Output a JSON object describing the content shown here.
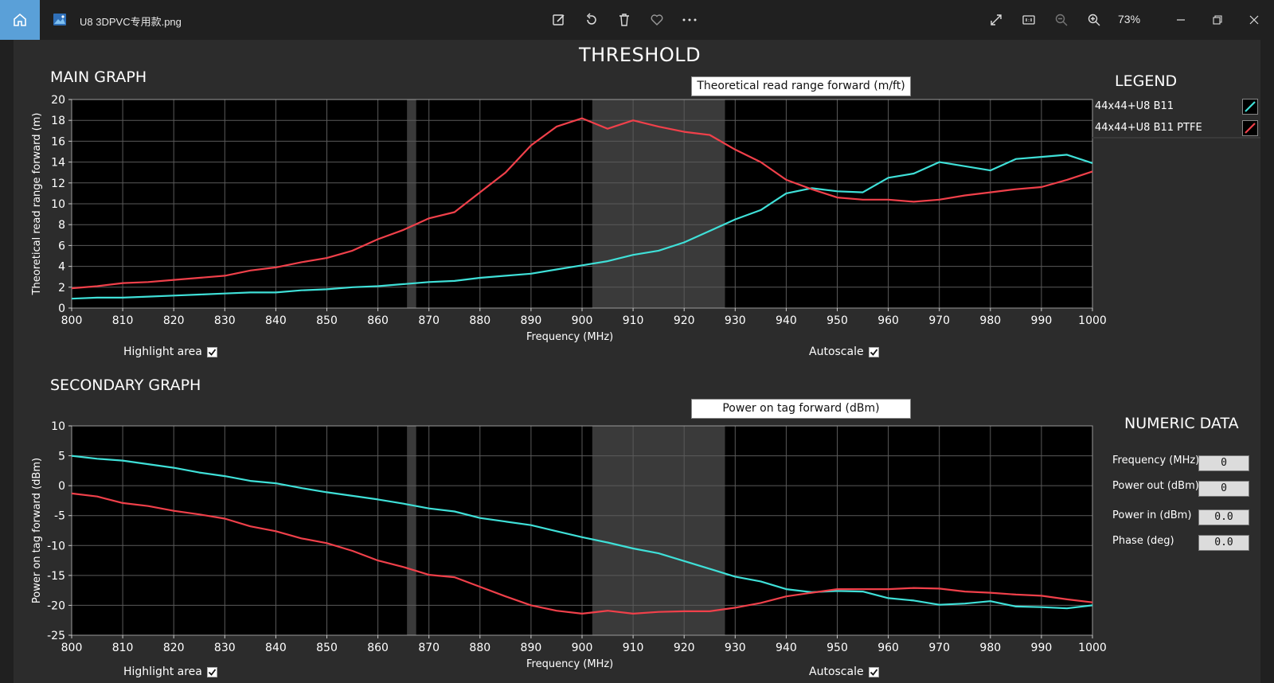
{
  "window": {
    "file_name": "U8 3DPVC专用款.png",
    "zoom": "73%"
  },
  "app": {
    "title": "THRESHOLD",
    "main_graph_label": "MAIN GRAPH",
    "secondary_graph_label": "SECONDARY GRAPH",
    "legend_title": "LEGEND",
    "legend": [
      {
        "name": "44x44+U8 B11",
        "color": "#3fe0d8"
      },
      {
        "name": "44x44+U8 B11 PTFE",
        "color": "#f0404a"
      }
    ],
    "numeric_title": "NUMERIC DATA",
    "numeric": [
      {
        "label": "Frequency (MHz)",
        "value": "0"
      },
      {
        "label": "Power out (dBm)",
        "value": "0"
      },
      {
        "label": "Power in (dBm)",
        "value": "0.0"
      },
      {
        "label": "Phase (deg)",
        "value": "0.0"
      }
    ],
    "highlight_label": "Highlight area",
    "autoscale_label": "Autoscale"
  },
  "chart_data": [
    {
      "type": "line",
      "title": "Theoretical read range forward (m/ft)",
      "xlabel": "Frequency (MHz)",
      "ylabel": "Theoretical read range forward (m)",
      "xlim": [
        800,
        1000
      ],
      "ylim": [
        0,
        20
      ],
      "xticks": [
        800,
        810,
        820,
        830,
        840,
        850,
        860,
        870,
        880,
        890,
        900,
        910,
        920,
        930,
        940,
        950,
        960,
        970,
        980,
        990,
        1000
      ],
      "yticks": [
        0,
        2,
        4,
        6,
        8,
        10,
        12,
        14,
        16,
        18,
        20
      ],
      "highlight_bands": [
        [
          865.7,
          867.5
        ],
        [
          902,
          928
        ]
      ],
      "grid": true,
      "x": [
        800,
        805,
        810,
        815,
        820,
        825,
        830,
        835,
        840,
        845,
        850,
        855,
        860,
        865,
        870,
        875,
        880,
        885,
        890,
        895,
        900,
        905,
        910,
        915,
        920,
        925,
        930,
        935,
        940,
        945,
        950,
        955,
        960,
        965,
        970,
        975,
        980,
        985,
        990,
        995,
        1000
      ],
      "series": [
        {
          "name": "44x44+U8 B11",
          "color": "#3fe0d8",
          "values": [
            0.9,
            1.0,
            1.0,
            1.1,
            1.2,
            1.3,
            1.4,
            1.5,
            1.5,
            1.7,
            1.8,
            2.0,
            2.1,
            2.3,
            2.5,
            2.6,
            2.9,
            3.1,
            3.3,
            3.7,
            4.1,
            4.5,
            5.1,
            5.5,
            6.3,
            7.4,
            8.5,
            9.4,
            11.0,
            11.5,
            11.2,
            11.1,
            12.5,
            12.9,
            14.0,
            13.6,
            13.2,
            14.3,
            14.5,
            14.7,
            13.9
          ]
        },
        {
          "name": "44x44+U8 B11 PTFE",
          "color": "#f0404a",
          "values": [
            1.9,
            2.1,
            2.4,
            2.5,
            2.7,
            2.9,
            3.1,
            3.6,
            3.9,
            4.4,
            4.8,
            5.5,
            6.6,
            7.5,
            8.6,
            9.2,
            11.1,
            13.0,
            15.6,
            17.4,
            18.2,
            17.2,
            18.0,
            17.4,
            16.9,
            16.6,
            15.2,
            14.0,
            12.3,
            11.4,
            10.6,
            10.4,
            10.4,
            10.2,
            10.4,
            10.8,
            11.1,
            11.4,
            11.6,
            12.3,
            13.1
          ]
        }
      ]
    },
    {
      "type": "line",
      "title": "Power on tag forward (dBm)",
      "xlabel": "Frequency (MHz)",
      "ylabel": "Power on tag forward (dBm)",
      "xlim": [
        800,
        1000
      ],
      "ylim": [
        -25,
        10
      ],
      "xticks": [
        800,
        810,
        820,
        830,
        840,
        850,
        860,
        870,
        880,
        890,
        900,
        910,
        920,
        930,
        940,
        950,
        960,
        970,
        980,
        990,
        1000
      ],
      "yticks": [
        -25,
        -20,
        -15,
        -10,
        -5,
        0,
        5,
        10
      ],
      "highlight_bands": [
        [
          865.7,
          867.5
        ],
        [
          902,
          928
        ]
      ],
      "grid": true,
      "x": [
        800,
        805,
        810,
        815,
        820,
        825,
        830,
        835,
        840,
        845,
        850,
        855,
        860,
        865,
        870,
        875,
        880,
        885,
        890,
        895,
        900,
        905,
        910,
        915,
        920,
        925,
        930,
        935,
        940,
        945,
        950,
        955,
        960,
        965,
        970,
        975,
        980,
        985,
        990,
        995,
        1000
      ],
      "series": [
        {
          "name": "44x44+U8 B11",
          "color": "#3fe0d8",
          "values": [
            5.0,
            4.5,
            4.2,
            3.6,
            3.0,
            2.2,
            1.6,
            0.8,
            0.4,
            -0.4,
            -1.1,
            -1.7,
            -2.3,
            -3.0,
            -3.8,
            -4.3,
            -5.4,
            -6.0,
            -6.6,
            -7.6,
            -8.6,
            -9.5,
            -10.5,
            -11.3,
            -12.6,
            -13.9,
            -15.2,
            -16.0,
            -17.3,
            -17.8,
            -17.6,
            -17.7,
            -18.8,
            -19.2,
            -19.9,
            -19.7,
            -19.3,
            -20.2,
            -20.3,
            -20.5,
            -20.0
          ]
        },
        {
          "name": "44x44+U8 B11 PTFE",
          "color": "#f0404a",
          "values": [
            -1.3,
            -1.8,
            -2.9,
            -3.4,
            -4.2,
            -4.8,
            -5.5,
            -6.8,
            -7.6,
            -8.8,
            -9.6,
            -10.9,
            -12.5,
            -13.6,
            -14.9,
            -15.3,
            -16.9,
            -18.5,
            -20.0,
            -20.9,
            -21.4,
            -20.9,
            -21.4,
            -21.1,
            -21.0,
            -21.0,
            -20.4,
            -19.6,
            -18.5,
            -17.9,
            -17.3,
            -17.3,
            -17.3,
            -17.1,
            -17.2,
            -17.7,
            -17.9,
            -18.2,
            -18.4,
            -19.0,
            -19.5
          ]
        }
      ]
    }
  ]
}
